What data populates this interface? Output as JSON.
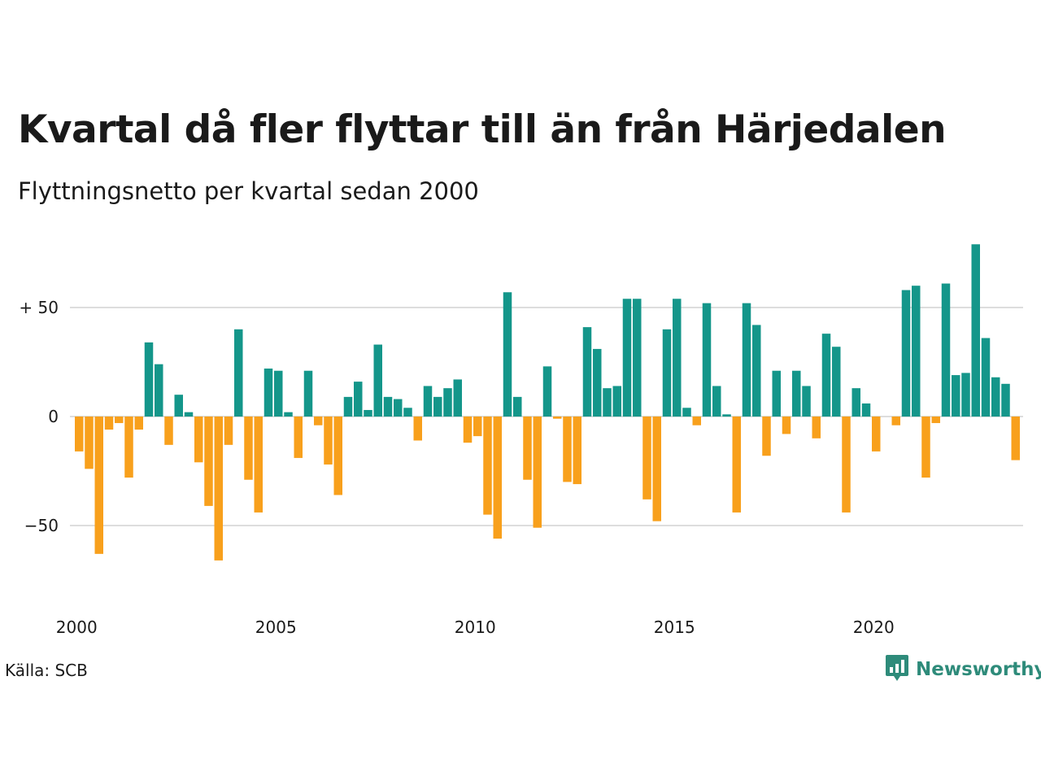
{
  "title": "Kvartal då fler flyttar till än från Härjedalen",
  "subtitle": "Flyttningsnetto per kvartal sedan 2000",
  "source": "Källa: SCB",
  "brand": {
    "name": "Newsworthy",
    "color": "#2e8b7a",
    "icon": "bar-chart-logo-icon"
  },
  "colors": {
    "positive": "#14968a",
    "negative": "#f8a01c",
    "grid": "#dddddd"
  },
  "chart_data": {
    "type": "bar",
    "start_year": 2000,
    "start_quarter": 1,
    "x_tick_labels": [
      "2000",
      "2005",
      "2010",
      "2015",
      "2020"
    ],
    "y_ticks": [
      {
        "value": 50,
        "label": "+ 50"
      },
      {
        "value": 0,
        "label": "0"
      },
      {
        "value": -50,
        "label": "−50"
      }
    ],
    "ylim": [
      -75,
      80
    ],
    "grid": true,
    "values": [
      -16,
      -24,
      -63,
      -6,
      -3,
      -28,
      -6,
      34,
      24,
      -13,
      10,
      2,
      -21,
      -41,
      -66,
      -13,
      40,
      -29,
      -44,
      22,
      21,
      2,
      -19,
      21,
      -4,
      -22,
      -36,
      9,
      16,
      3,
      33,
      9,
      8,
      4,
      -11,
      14,
      9,
      13,
      17,
      -12,
      -9,
      -45,
      -56,
      57,
      9,
      -29,
      -51,
      23,
      -1,
      -30,
      -31,
      41,
      31,
      13,
      14,
      54,
      54,
      -38,
      -48,
      40,
      54,
      4,
      -4,
      52,
      14,
      1,
      -44,
      52,
      42,
      -18,
      21,
      -8,
      21,
      14,
      -10,
      38,
      32,
      -44,
      13,
      6,
      -16,
      0,
      -4,
      58,
      60,
      -28,
      -3,
      61,
      19,
      20,
      79,
      36,
      18,
      15,
      -20
    ]
  }
}
